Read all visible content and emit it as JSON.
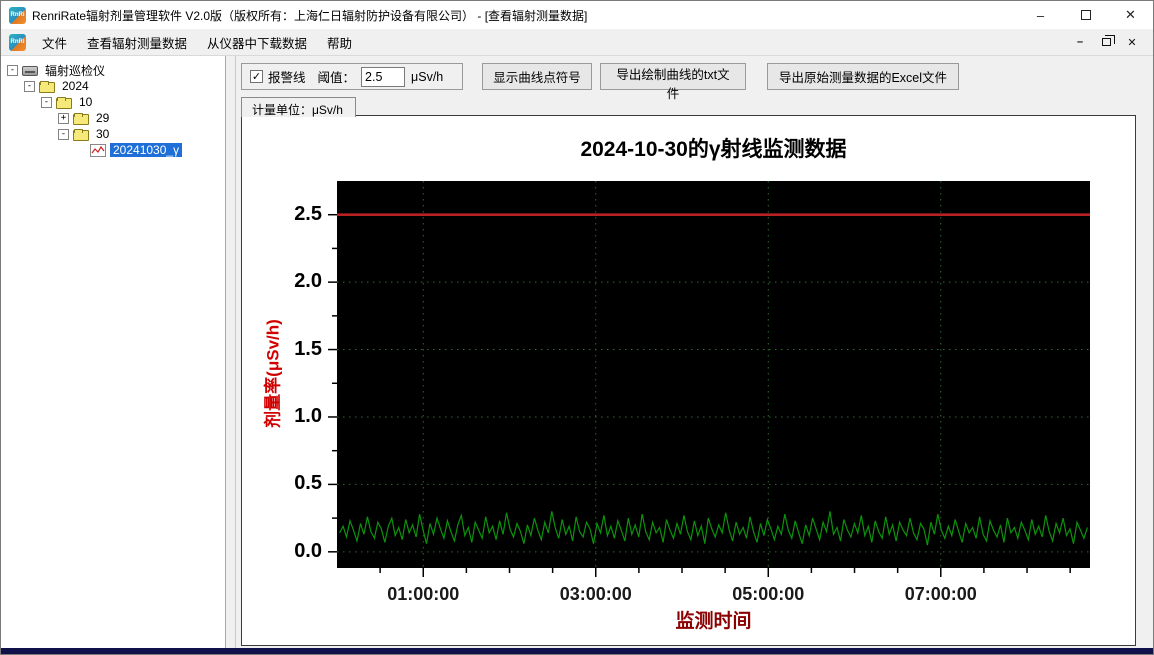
{
  "window": {
    "title": "RenriRate辐射剂量管理软件 V2.0版（版权所有：上海仁日辐射防护设备有限公司） - [查看辐射测量数据]",
    "app_icon_text": "RnRi",
    "controls": {
      "minimize": "–",
      "close": "✕"
    },
    "mdi_controls": {
      "minimize": "–",
      "close": "✕"
    }
  },
  "menu": {
    "items": [
      "文件",
      "查看辐射测量数据",
      "从仪器中下载数据",
      "帮助"
    ]
  },
  "sidebar": {
    "tree": [
      {
        "label": "辐射巡检仪",
        "level": 0,
        "toggle": "-",
        "icon": "device",
        "selected": false
      },
      {
        "label": "2024",
        "level": 1,
        "toggle": "-",
        "icon": "folder",
        "selected": false
      },
      {
        "label": "10",
        "level": 2,
        "toggle": "-",
        "icon": "folder",
        "selected": false
      },
      {
        "label": "29",
        "level": 3,
        "toggle": "+",
        "icon": "folder",
        "selected": false
      },
      {
        "label": "30",
        "level": 3,
        "toggle": "-",
        "icon": "folder",
        "selected": false
      },
      {
        "label": "20241030_γ",
        "level": 4,
        "toggle": "",
        "icon": "chart",
        "selected": true
      }
    ]
  },
  "toolbar": {
    "alarm_checkbox_label": "报警线",
    "alarm_checked": true,
    "check_glyph": "✓",
    "threshold_label": "阈值：",
    "threshold_value": "2.5",
    "threshold_unit": "μSv/h",
    "buttons": [
      "显示曲线点符号",
      "导出绘制曲线的txt文件",
      "导出原始测量数据的Excel文件"
    ],
    "unit_tab_label": "计量单位：μSv/h"
  },
  "chart_data": {
    "type": "line",
    "title": "2024-10-30的γ射线监测数据",
    "xlabel": "监测时间",
    "ylabel": "剂量率(μSv/h)",
    "xlim_hours": [
      0,
      8.73
    ],
    "ylim": [
      -0.12,
      2.75
    ],
    "x_major_ticks": [
      {
        "hour": 1,
        "label": "01:00:00"
      },
      {
        "hour": 3,
        "label": "03:00:00"
      },
      {
        "hour": 5,
        "label": "05:00:00"
      },
      {
        "hour": 7,
        "label": "07:00:00"
      }
    ],
    "x_minor_step_hours": 0.5,
    "y_major_ticks": [
      0.0,
      0.5,
      1.0,
      1.5,
      2.0,
      2.5
    ],
    "y_minor_step": 0.25,
    "grid": {
      "on": true,
      "style": "dotted",
      "color": "#2e6b2e"
    },
    "plot_bg": "#000000",
    "alarm_line": {
      "value": 2.5,
      "color": "#b82222"
    },
    "legend": "none",
    "series": [
      {
        "name": "剂量率",
        "color": "#0c930c",
        "values": [
          0.14,
          0.19,
          0.11,
          0.23,
          0.16,
          0.08,
          0.21,
          0.13,
          0.26,
          0.15,
          0.1,
          0.22,
          0.17,
          0.07,
          0.19,
          0.25,
          0.12,
          0.18,
          0.09,
          0.24,
          0.14,
          0.2,
          0.11,
          0.28,
          0.16,
          0.06,
          0.21,
          0.13,
          0.25,
          0.17,
          0.1,
          0.23,
          0.15,
          0.08,
          0.2,
          0.27,
          0.12,
          0.18,
          0.07,
          0.22,
          0.16,
          0.1,
          0.26,
          0.14,
          0.19,
          0.09,
          0.23,
          0.13,
          0.29,
          0.17,
          0.11,
          0.21,
          0.15,
          0.06,
          0.2,
          0.12,
          0.25,
          0.16,
          0.09,
          0.22,
          0.14,
          0.3,
          0.18,
          0.1,
          0.24,
          0.13,
          0.19,
          0.08,
          0.26,
          0.15,
          0.11,
          0.22,
          0.17,
          0.06,
          0.21,
          0.14,
          0.27,
          0.12,
          0.19,
          0.1,
          0.23,
          0.16,
          0.08,
          0.25,
          0.13,
          0.2,
          0.11,
          0.28,
          0.15,
          0.09,
          0.22,
          0.14,
          0.18,
          0.07,
          0.24,
          0.16,
          0.1,
          0.21,
          0.13,
          0.27,
          0.15,
          0.09,
          0.23,
          0.12,
          0.19,
          0.06,
          0.25,
          0.17,
          0.11,
          0.2,
          0.14,
          0.29,
          0.16,
          0.08,
          0.22,
          0.13,
          0.18,
          0.1,
          0.26,
          0.15,
          0.07,
          0.21,
          0.12,
          0.24,
          0.17,
          0.09,
          0.19,
          0.13,
          0.28,
          0.16,
          0.1,
          0.23,
          0.14,
          0.06,
          0.2,
          0.12,
          0.25,
          0.17,
          0.09,
          0.22,
          0.15,
          0.3,
          0.13,
          0.18,
          0.08,
          0.24,
          0.16,
          0.11,
          0.21,
          0.14,
          0.27,
          0.12,
          0.19,
          0.07,
          0.23,
          0.15,
          0.1,
          0.26,
          0.13,
          0.2,
          0.08,
          0.22,
          0.16,
          0.12,
          0.25,
          0.14,
          0.09,
          0.21,
          0.17,
          0.05,
          0.22,
          0.13,
          0.28,
          0.16,
          0.1,
          0.19,
          0.12,
          0.24,
          0.15,
          0.07,
          0.21,
          0.14,
          0.18,
          0.1,
          0.26,
          0.13,
          0.08,
          0.23,
          0.16,
          0.11,
          0.2,
          0.07,
          0.25,
          0.14,
          0.18,
          0.1,
          0.22,
          0.16,
          0.09,
          0.24,
          0.13,
          0.19,
          0.11,
          0.27,
          0.15,
          0.08,
          0.21,
          0.14,
          0.25,
          0.12,
          0.17,
          0.06,
          0.22,
          0.16,
          0.1,
          0.18
        ]
      }
    ]
  }
}
